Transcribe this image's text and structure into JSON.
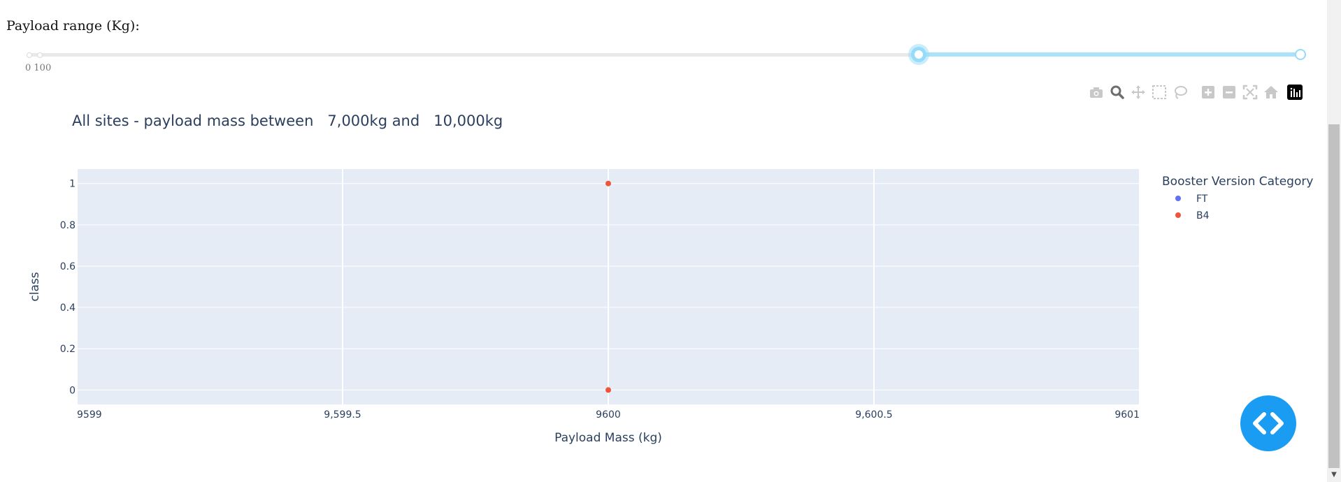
{
  "slider": {
    "label": "Payload range (Kg):",
    "tick_labels": "0 100",
    "min": 0,
    "max": 10000,
    "value_low": 7000,
    "value_high": 10000,
    "accent_color": "#96dbfa"
  },
  "modebar": {
    "buttons": [
      "camera-icon",
      "zoom-icon",
      "pan-icon",
      "box-select-icon",
      "lasso-select-icon",
      "zoom-in-icon",
      "zoom-out-icon",
      "autoscale-icon",
      "reset-axes-icon",
      "plotly-logo-icon"
    ]
  },
  "fab": {
    "icon": "code-icon",
    "color": "#1a9cf2"
  },
  "chart_data": {
    "type": "scatter",
    "title": "All sites - payload mass between   7,000kg and   10,000kg",
    "xlabel": "Payload Mass (kg)",
    "ylabel": "class",
    "xlim": [
      9599,
      9601
    ],
    "ylim": [
      -0.07,
      1.07
    ],
    "x_ticks": [
      9599,
      9599.5,
      9600,
      9600.5,
      9601
    ],
    "x_tick_labels": [
      "9599",
      "9,599.5",
      "9600",
      "9,600.5",
      "9601"
    ],
    "y_ticks": [
      0,
      0.2,
      0.4,
      0.6,
      0.8,
      1
    ],
    "y_tick_labels": [
      "0",
      "0.2",
      "0.4",
      "0.6",
      "0.8",
      "1"
    ],
    "grid": true,
    "plot_background": "#e5ecf6",
    "legend": {
      "title": "Booster Version Category",
      "position": "right"
    },
    "series": [
      {
        "name": "FT",
        "color": "#636efa",
        "points": []
      },
      {
        "name": "B4",
        "color": "#ef553b",
        "points": [
          {
            "x": 9600,
            "y": 1
          },
          {
            "x": 9600,
            "y": 0
          }
        ]
      }
    ]
  }
}
